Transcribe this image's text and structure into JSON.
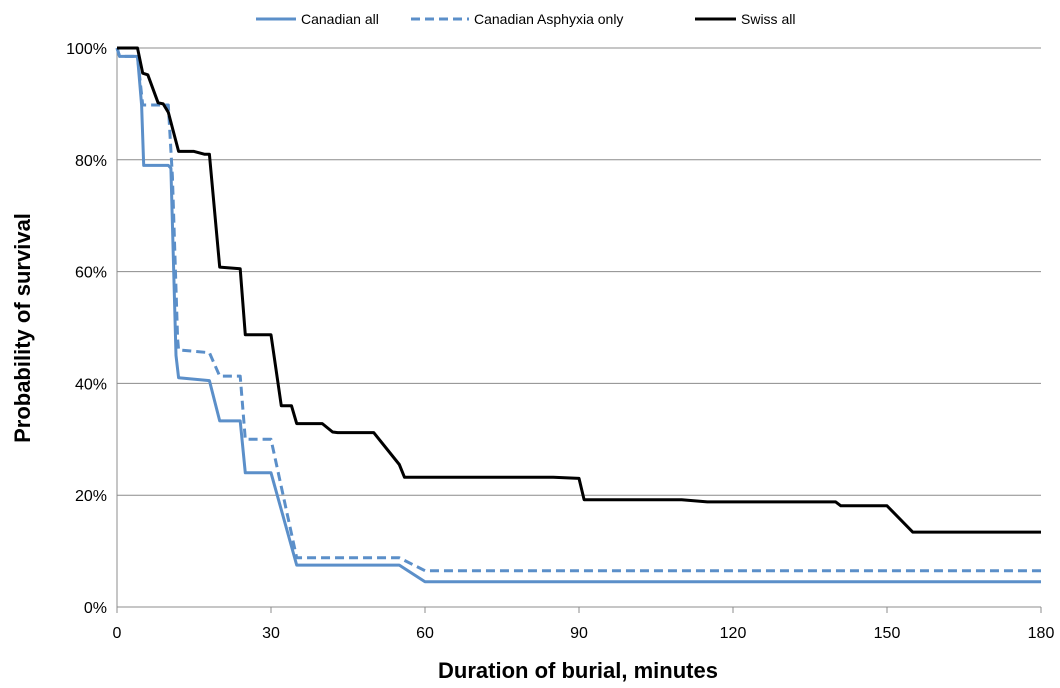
{
  "chart_data": {
    "type": "line",
    "title": "",
    "xlabel": "Duration of burial, minutes",
    "ylabel": "Probability of survival",
    "xlim": [
      0,
      180
    ],
    "ylim": [
      0,
      100
    ],
    "x_ticks": [
      "0",
      "30",
      "60",
      "90",
      "120",
      "150",
      "180"
    ],
    "y_ticks": [
      "0%",
      "20%",
      "40%",
      "60%",
      "80%",
      "100%"
    ],
    "grid": "horizontal",
    "legend_position": "top",
    "series": [
      {
        "name": "Canadian all",
        "color": "#5b8fc9",
        "dash": "solid",
        "x": [
          0,
          0.5,
          4,
          4.8,
          5.2,
          10,
          10.5,
          11.5,
          12,
          18,
          20,
          24,
          25,
          30,
          35,
          55,
          60,
          180
        ],
        "y": [
          100,
          98.5,
          98.5,
          89.8,
          79,
          79,
          78.5,
          45,
          41,
          40.5,
          33.3,
          33.3,
          24,
          24,
          7.5,
          7.5,
          4.5,
          4.5
        ]
      },
      {
        "name": "Canadian Asphyxia only",
        "color": "#5b8fc9",
        "dash": "dashed",
        "x": [
          0,
          0.5,
          4,
          5,
          10,
          10.8,
          11.8,
          12,
          18,
          20,
          24,
          25,
          30,
          35,
          55,
          60,
          180
        ],
        "y": [
          100,
          98.5,
          98.5,
          89.8,
          89.8,
          77,
          48,
          46,
          45.5,
          41.3,
          41.3,
          30,
          30,
          8.8,
          8.8,
          6.5,
          6.5
        ]
      },
      {
        "name": "Swiss all",
        "color": "#000000",
        "dash": "solid",
        "x": [
          0,
          4,
          5,
          6,
          8,
          9,
          10,
          12,
          15,
          17,
          18,
          20,
          24,
          25,
          30,
          32,
          34,
          35,
          40,
          42,
          43,
          50,
          55,
          56,
          60,
          85,
          90,
          91,
          110,
          115,
          140,
          141,
          150,
          155,
          180
        ],
        "y": [
          100,
          100,
          95.5,
          95.2,
          90.2,
          90,
          88.5,
          81.5,
          81.5,
          81,
          81,
          60.8,
          60.5,
          48.7,
          48.7,
          36,
          36,
          32.8,
          32.8,
          31.3,
          31.2,
          31.2,
          25.5,
          23.2,
          23.2,
          23.2,
          23,
          19.2,
          19.2,
          18.8,
          18.8,
          18.1,
          18.1,
          13.4,
          13.4
        ]
      }
    ]
  }
}
